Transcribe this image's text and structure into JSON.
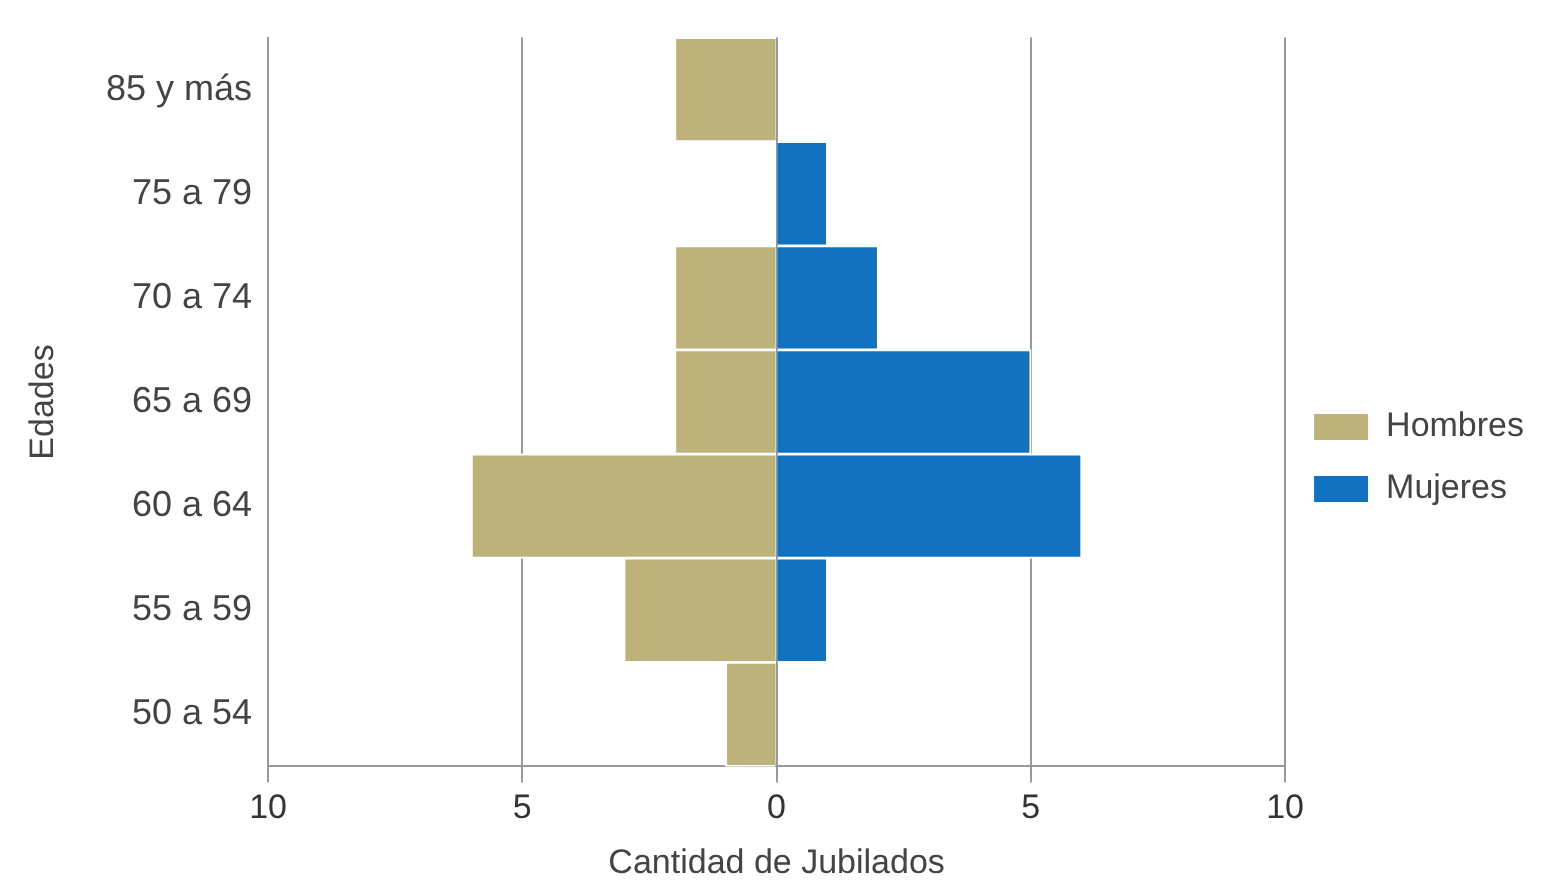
{
  "chart_data": {
    "type": "bar",
    "orientation": "horizontal",
    "stacked": true,
    "categories": [
      "85 y más",
      "75 a 79",
      "70 a 74",
      "65 a 69",
      "60 a 64",
      "55 a 59",
      "50 a 54"
    ],
    "series": [
      {
        "name": "Hombres",
        "color": "#bdb27a",
        "values": [
          -2,
          0,
          -2,
          -2,
          -6,
          -3,
          -1
        ]
      },
      {
        "name": "Mujeres",
        "color": "#1272bf",
        "values": [
          0,
          1,
          2,
          5,
          6,
          1,
          0
        ]
      }
    ],
    "xlim": [
      -10,
      10
    ],
    "xticks": [
      {
        "value": -10,
        "label": "10"
      },
      {
        "value": -5,
        "label": "5"
      },
      0,
      5,
      10
    ],
    "xlabel": "Cantidad de Jubilados",
    "ylabel": "Edades",
    "grid": "x",
    "legend": "right"
  }
}
